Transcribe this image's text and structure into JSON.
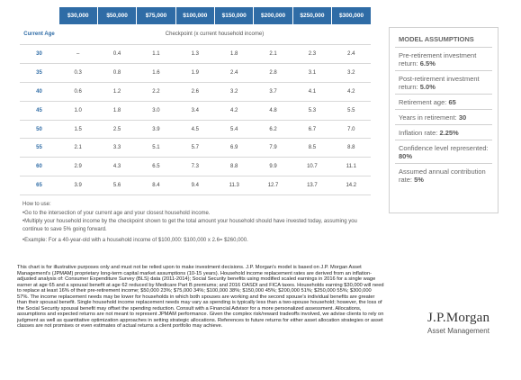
{
  "table": {
    "income_headers": [
      "$30,000",
      "$50,000",
      "$75,000",
      "$100,000",
      "$150,000",
      "$200,000",
      "$250,000",
      "$300,000"
    ],
    "age_header": "Current Age",
    "checkpoint_header": "Checkpoint (x current household income)",
    "rows": [
      {
        "age": "30",
        "values": [
          "–",
          "0.4",
          "1.1",
          "1.3",
          "1.8",
          "2.1",
          "2.3",
          "2.4"
        ]
      },
      {
        "age": "35",
        "values": [
          "0.3",
          "0.8",
          "1.6",
          "1.9",
          "2.4",
          "2.8",
          "3.1",
          "3.2"
        ]
      },
      {
        "age": "40",
        "values": [
          "0.6",
          "1.2",
          "2.2",
          "2.6",
          "3.2",
          "3.7",
          "4.1",
          "4.2"
        ]
      },
      {
        "age": "45",
        "values": [
          "1.0",
          "1.8",
          "3.0",
          "3.4",
          "4.2",
          "4.8",
          "5.3",
          "5.5"
        ]
      },
      {
        "age": "50",
        "values": [
          "1.5",
          "2.5",
          "3.9",
          "4.5",
          "5.4",
          "6.2",
          "6.7",
          "7.0"
        ]
      },
      {
        "age": "55",
        "values": [
          "2.1",
          "3.3",
          "5.1",
          "5.7",
          "6.9",
          "7.9",
          "8.5",
          "8.8"
        ]
      },
      {
        "age": "60",
        "values": [
          "2.9",
          "4.3",
          "6.5",
          "7.3",
          "8.8",
          "9.9",
          "10.7",
          "11.1"
        ]
      },
      {
        "age": "65",
        "values": [
          "3.9",
          "5.6",
          "8.4",
          "9.4",
          "11.3",
          "12.7",
          "13.7",
          "14.2"
        ]
      }
    ]
  },
  "how_to": {
    "title": "How to use:",
    "bullets": [
      "Go to the intersection of your current age and your closest household income.",
      "Multiply your household income by the checkpoint shown to get the total amount your household should have invested today, assuming you continue to save 5% going forward.",
      "Example: For a 40-year-old with a household income of $100,000: $100,000 x 2.6= $260,000."
    ]
  },
  "assumptions": {
    "title": "MODEL ASSUMPTIONS",
    "items": [
      {
        "label": "Pre-retirement investment return: ",
        "value": "6.5%"
      },
      {
        "label": "Post-retirement investment return: ",
        "value": "5.0%"
      },
      {
        "label": "Retirement age: ",
        "value": "65"
      },
      {
        "label": "Years in retirement: ",
        "value": "30"
      },
      {
        "label": "Inflation rate: ",
        "value": "2.25%"
      },
      {
        "label": "Confidence level represented: ",
        "value": "80%"
      },
      {
        "label": "Assumed annual contribution rate: ",
        "value": "5%"
      }
    ]
  },
  "disclaimer": "This chart is for illustrative purposes only and must not be relied upon to make investment decisions. J.P. Morgan's model is based on J.P. Morgan Asset Management's (JPMAM) proprietary long-term capital market assumptions (10-15 years). Household income replacement rates are derived from an inflation-adjusted analysis of: Consumer Expenditure Survey (BLS) data (2011-2014); Social Security benefits using modified scaled earnings in 2016 for a single wage earner at age 65 and a spousal benefit at age 62 reduced by Medicare Part B premiums; and 2016 OASDI and FICA taxes. Households earning $30,000 will need to replace at least 16% of their pre-retirement income; $50,000 23%; $75,000 34%; $100,000 38%; $150,000 45%; $200,000 51%; $250,000 55%; $300,000 57%. The income replacement needs may be lower for households in which both spouses are working and the second spouse's individual benefits are greater than their spousal benefit. Single household income replacement needs may vary as spending is typically less than a two-spouse household; however, the loss of the Social Security spousal benefit may offset the spending reduction. Consult with a Financial Advisor for a more personalized assessment. Allocations, assumptions and expected returns are not meant to represent JPMAM performance. Given the complex risk/reward tradeoffs involved, we advise clients to rely on judgment as well as quantitative optimization approaches in setting strategic allocations. References to future returns for either asset allocation strategies or asset classes are not promises or even estimates of actual returns a client portfolio may achieve.",
  "logo": {
    "name": "J.P.Morgan",
    "subtitle": "Asset Management"
  },
  "colors": {
    "header_blue": "#2f6ca6",
    "border_gray": "#d0d0d0"
  }
}
